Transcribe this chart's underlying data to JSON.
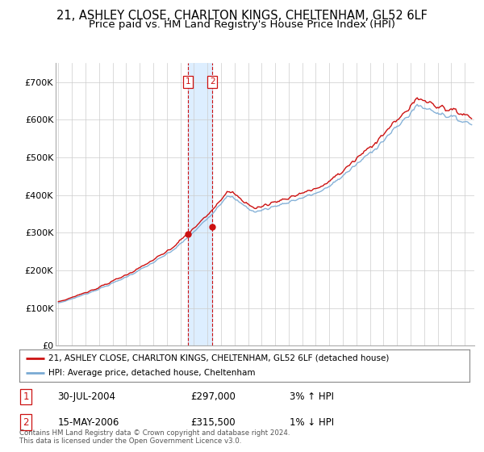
{
  "title": "21, ASHLEY CLOSE, CHARLTON KINGS, CHELTENHAM, GL52 6LF",
  "subtitle": "Price paid vs. HM Land Registry's House Price Index (HPI)",
  "ylim": [
    0,
    750000
  ],
  "yticks": [
    0,
    100000,
    200000,
    300000,
    400000,
    500000,
    600000,
    700000
  ],
  "ytick_labels": [
    "£0",
    "£100K",
    "£200K",
    "£300K",
    "£400K",
    "£500K",
    "£600K",
    "£700K"
  ],
  "hpi_color": "#7aaad4",
  "price_color": "#cc1111",
  "marker_color": "#cc1111",
  "shade_color": "#ddeeff",
  "sale1_date": 2004.58,
  "sale1_price": 297000,
  "sale2_date": 2006.37,
  "sale2_price": 315500,
  "legend_entry1": "21, ASHLEY CLOSE, CHARLTON KINGS, CHELTENHAM, GL52 6LF (detached house)",
  "legend_entry2": "HPI: Average price, detached house, Cheltenham",
  "annotation1_label": "1",
  "annotation1_date": "30-JUL-2004",
  "annotation1_price": "£297,000",
  "annotation1_hpi": "3% ↑ HPI",
  "annotation2_label": "2",
  "annotation2_date": "15-MAY-2006",
  "annotation2_price": "£315,500",
  "annotation2_hpi": "1% ↓ HPI",
  "footer": "Contains HM Land Registry data © Crown copyright and database right 2024.\nThis data is licensed under the Open Government Licence v3.0.",
  "background_color": "#ffffff",
  "grid_color": "#cccccc",
  "title_fontsize": 10.5,
  "subtitle_fontsize": 9.5
}
